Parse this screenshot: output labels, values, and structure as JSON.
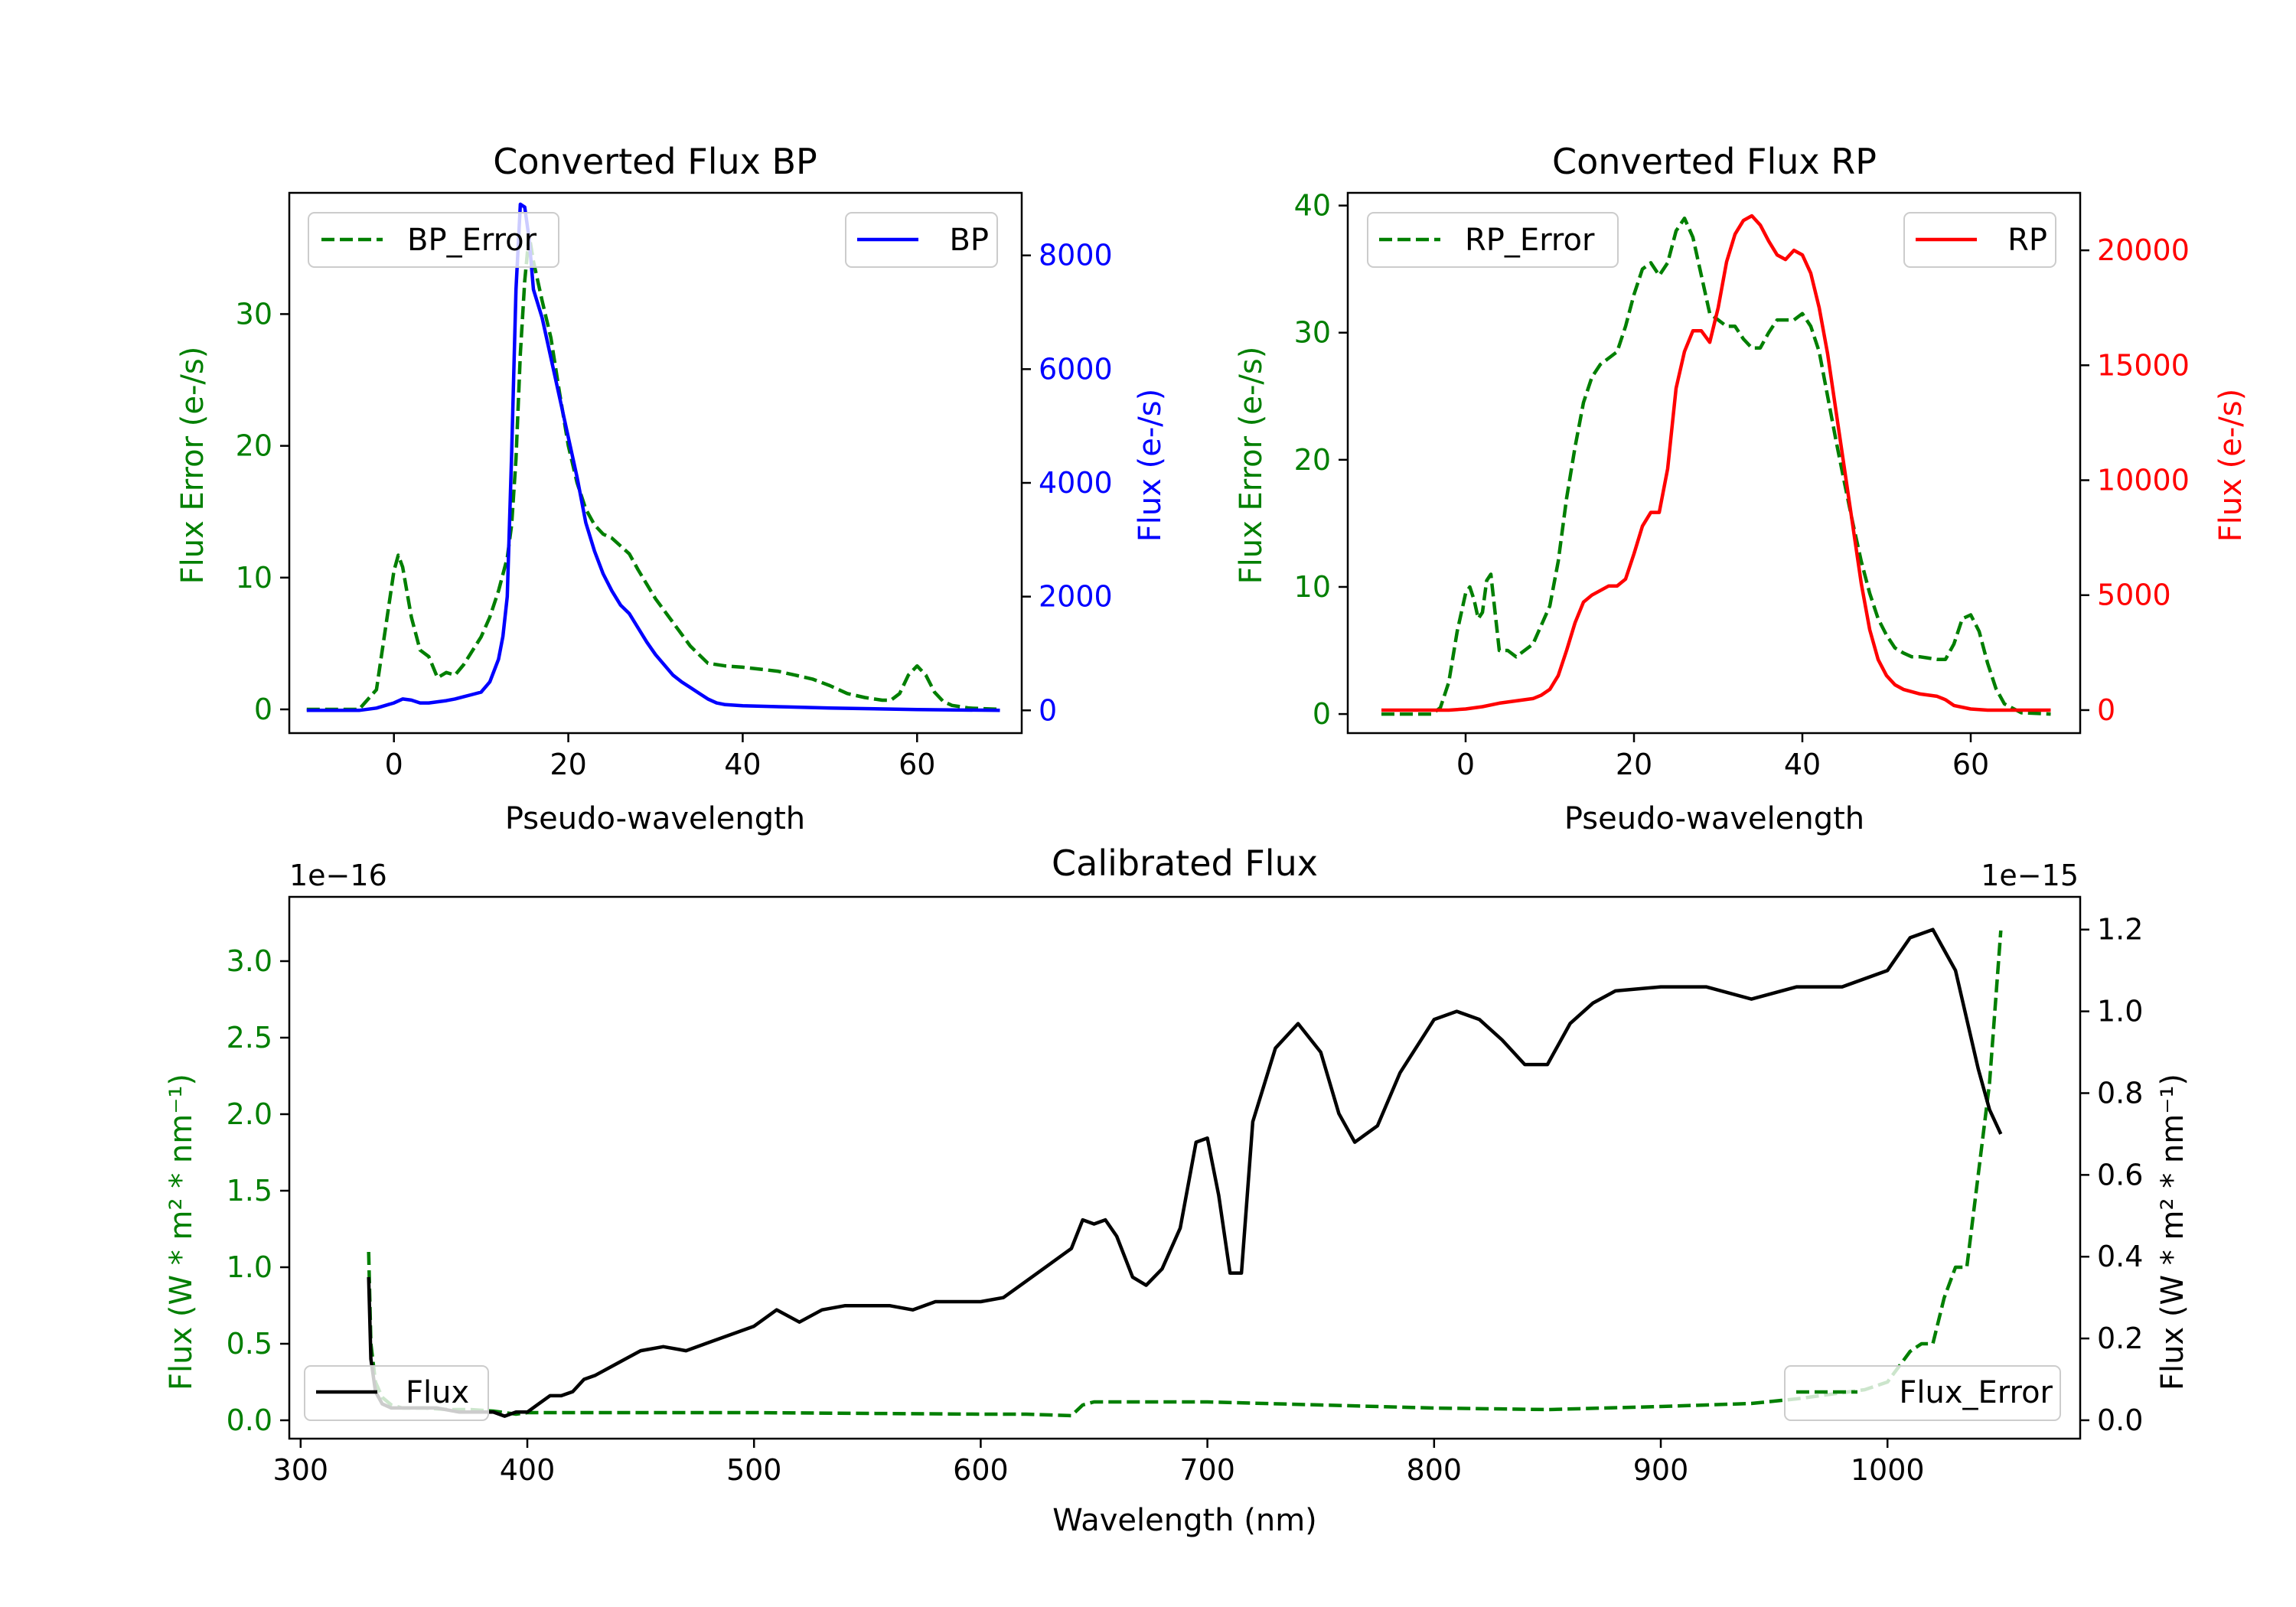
{
  "colors": {
    "error": "#007f00",
    "bp": "#0000ff",
    "rp": "#ff0000",
    "flux": "#000000"
  },
  "chart_data": [
    {
      "type": "line",
      "title": "Converted Flux BP",
      "xlabel": "Pseudo-wavelength",
      "ylabel_left": "Flux Error (e-/s)",
      "ylabel_right": "Flux (e-/s)",
      "xlim": [
        -12,
        72
      ],
      "ylim_left": [
        -1.8,
        39.2
      ],
      "ylim_right": [
        -400,
        9100
      ],
      "xticks": [
        0,
        20,
        40,
        60
      ],
      "yticks_left": [
        0,
        10,
        20,
        30
      ],
      "yticks_right": [
        0,
        2000,
        4000,
        6000,
        8000
      ],
      "legend_left": {
        "label": "BP_Error",
        "position": "upper left"
      },
      "legend_right": {
        "label": "BP",
        "position": "upper right"
      },
      "series": [
        {
          "name": "BP_Error",
          "axis": "left",
          "style": "dashed",
          "color": "#007f00",
          "x": [
            -10,
            -4,
            -2,
            -1,
            0,
            0.5,
            1,
            2,
            3,
            4,
            5,
            6,
            7,
            8,
            10,
            11,
            12,
            13,
            13.5,
            14,
            14.5,
            15,
            15.5,
            16,
            17,
            18,
            19,
            20,
            21,
            22,
            23,
            24,
            25,
            26,
            27,
            28,
            30,
            32,
            34,
            36,
            38,
            40,
            44,
            46,
            48,
            50,
            52,
            54,
            56,
            57,
            58,
            59,
            60,
            61,
            62,
            63,
            64,
            66,
            69.5
          ],
          "y": [
            0,
            0,
            1.5,
            6,
            10.5,
            11.7,
            10.8,
            7,
            4.5,
            4,
            2.4,
            2.8,
            2.6,
            3.4,
            5.5,
            7,
            9,
            11.5,
            14,
            19,
            27,
            32.5,
            36,
            34,
            31,
            28.2,
            24,
            20,
            17.2,
            15.2,
            14,
            13.3,
            13,
            12.4,
            11.8,
            10.6,
            8.4,
            6.6,
            4.8,
            3.5,
            3.3,
            3.2,
            2.9,
            2.6,
            2.3,
            1.8,
            1.2,
            0.9,
            0.7,
            0.7,
            1.2,
            2.6,
            3.3,
            2.6,
            1.3,
            0.6,
            0.3,
            0.1,
            0
          ]
        },
        {
          "name": "BP",
          "axis": "right",
          "style": "solid",
          "color": "#0000ff",
          "x": [
            -10,
            -4,
            -2,
            0,
            1,
            2,
            3,
            4,
            5,
            6,
            7,
            8,
            9,
            10,
            11,
            12,
            12.5,
            13,
            13.5,
            14,
            14.5,
            15,
            15.5,
            16,
            17,
            18,
            19,
            20,
            21,
            22,
            23,
            24,
            25,
            26,
            27,
            28,
            29,
            30,
            31,
            32,
            33,
            34,
            35,
            36,
            37,
            38,
            40,
            45,
            50,
            60,
            69.5
          ],
          "y": [
            0,
            0,
            40,
            130,
            200,
            180,
            130,
            130,
            150,
            170,
            200,
            240,
            280,
            320,
            500,
            900,
            1300,
            2000,
            4500,
            7400,
            8900,
            8850,
            8300,
            7400,
            6900,
            6200,
            5500,
            4800,
            4100,
            3300,
            2800,
            2400,
            2100,
            1850,
            1700,
            1450,
            1200,
            980,
            800,
            620,
            500,
            400,
            300,
            200,
            130,
            100,
            80,
            60,
            40,
            15,
            0
          ]
        }
      ]
    },
    {
      "type": "line",
      "title": "Converted Flux RP",
      "xlabel": "Pseudo-wavelength",
      "ylabel_left": "Flux Error (e-/s)",
      "ylabel_right": "Flux (e-/s)",
      "xlim": [
        -14,
        73
      ],
      "ylim_left": [
        -1.5,
        41
      ],
      "ylim_right": [
        -1000,
        22500
      ],
      "xticks": [
        0,
        20,
        40,
        60
      ],
      "yticks_left": [
        0,
        10,
        20,
        30,
        40
      ],
      "yticks_right": [
        0,
        5000,
        10000,
        15000,
        20000
      ],
      "legend_left": {
        "label": "RP_Error",
        "position": "upper left"
      },
      "legend_right": {
        "label": "RP",
        "position": "upper right"
      },
      "series": [
        {
          "name": "RP_Error",
          "axis": "left",
          "style": "dashed",
          "color": "#007f00",
          "x": [
            -10,
            -4,
            -3,
            -2,
            -1,
            0,
            0.5,
            1,
            1.5,
            2,
            2.5,
            3,
            3.5,
            4,
            5,
            6,
            8,
            10,
            11,
            12,
            13,
            14,
            15,
            16,
            17,
            18,
            19,
            20,
            21,
            22,
            23,
            24,
            25,
            26,
            27,
            28,
            29,
            30,
            31,
            32,
            33,
            34,
            35,
            36,
            37,
            38,
            39,
            40,
            41,
            42,
            43,
            44,
            45,
            46,
            47,
            48,
            49,
            50,
            51,
            52,
            53,
            54,
            55,
            56,
            57,
            58,
            59,
            60,
            61,
            62,
            63,
            64,
            66,
            69.5
          ],
          "y": [
            0,
            0,
            0.5,
            2.5,
            6.5,
            9.5,
            10,
            9,
            7.5,
            8,
            10.5,
            11,
            8,
            5,
            5,
            4.5,
            5.5,
            8.5,
            12,
            17,
            21,
            24.5,
            26.5,
            27.5,
            28,
            28.5,
            30.5,
            33,
            35,
            35.5,
            34.5,
            35.5,
            38,
            39,
            37.5,
            34.5,
            31.5,
            31,
            30.5,
            30.5,
            29.5,
            28.8,
            28.8,
            30,
            31,
            31,
            31,
            31.5,
            30.5,
            28.5,
            25,
            21.5,
            18.2,
            15,
            12,
            9.5,
            7.5,
            6.2,
            5.2,
            4.8,
            4.5,
            4.5,
            4.4,
            4.3,
            4.3,
            5.5,
            7.5,
            7.8,
            6.5,
            4,
            2,
            0.8,
            0.1,
            0
          ]
        },
        {
          "name": "RP",
          "axis": "right",
          "style": "solid",
          "color": "#ff0000",
          "x": [
            -10,
            -2,
            0,
            2,
            4,
            6,
            8,
            9,
            10,
            11,
            12,
            13,
            14,
            15,
            16,
            17,
            18,
            19,
            20,
            21,
            22,
            23,
            24,
            25,
            26,
            27,
            28,
            29,
            30,
            31,
            32,
            33,
            34,
            35,
            36,
            37,
            38,
            39,
            40,
            41,
            42,
            43,
            44,
            45,
            46,
            47,
            48,
            49,
            50,
            51,
            52,
            53,
            54,
            55,
            56,
            57,
            58,
            60,
            62,
            64,
            69.5
          ],
          "y": [
            0,
            0,
            50,
            150,
            300,
            400,
            500,
            650,
            900,
            1500,
            2600,
            3800,
            4700,
            5000,
            5200,
            5400,
            5400,
            5700,
            6800,
            8000,
            8600,
            8600,
            10500,
            14000,
            15600,
            16500,
            16500,
            16000,
            17500,
            19500,
            20700,
            21300,
            21500,
            21100,
            20400,
            19800,
            19600,
            20000,
            19800,
            19000,
            17500,
            15500,
            13000,
            10500,
            8000,
            5500,
            3500,
            2200,
            1500,
            1100,
            900,
            800,
            700,
            650,
            600,
            450,
            200,
            50,
            0,
            0,
            0
          ]
        }
      ]
    },
    {
      "type": "line",
      "title": "Calibrated Flux",
      "xlabel": "Wavelength (nm)",
      "ylabel_left": "Flux (W * m² * nm⁻¹)",
      "ylabel_right": "Flux (W * m² * nm⁻¹)",
      "offset_left": "1e−16",
      "offset_right": "1e−15",
      "xlim": [
        295,
        1085
      ],
      "ylim_left": [
        -0.12,
        3.42
      ],
      "ylim_right": [
        -0.045,
        1.28
      ],
      "xticks": [
        300,
        400,
        500,
        600,
        700,
        800,
        900,
        1000
      ],
      "yticks_left": [
        0.0,
        0.5,
        1.0,
        1.5,
        2.0,
        2.5,
        3.0
      ],
      "yticks_right": [
        0.0,
        0.2,
        0.4,
        0.6,
        0.8,
        1.0,
        1.2
      ],
      "legend_left": {
        "label": "Flux",
        "position": "lower left"
      },
      "legend_right": {
        "label": "Flux_Error",
        "position": "lower right"
      },
      "series": [
        {
          "name": "Flux_Error",
          "axis": "left",
          "style": "dashed",
          "color": "#007f00",
          "x": [
            330,
            331,
            333,
            336,
            340,
            345,
            355,
            365,
            375,
            385,
            390,
            395,
            400,
            420,
            500,
            600,
            620,
            640,
            645,
            650,
            700,
            750,
            800,
            850,
            900,
            940,
            960,
            980,
            990,
            1000,
            1005,
            1010,
            1015,
            1020,
            1025,
            1030,
            1035,
            1040,
            1045,
            1048,
            1050
          ],
          "y": [
            1.1,
            0.5,
            0.25,
            0.15,
            0.1,
            0.08,
            0.08,
            0.07,
            0.07,
            0.06,
            0.05,
            0.04,
            0.05,
            0.05,
            0.05,
            0.04,
            0.04,
            0.03,
            0.1,
            0.12,
            0.12,
            0.1,
            0.08,
            0.07,
            0.09,
            0.11,
            0.14,
            0.18,
            0.2,
            0.25,
            0.35,
            0.45,
            0.5,
            0.5,
            0.8,
            1.0,
            1.0,
            1.6,
            2.2,
            2.8,
            3.2
          ]
        },
        {
          "name": "Flux",
          "axis": "right",
          "style": "solid",
          "color": "#000000",
          "x": [
            330,
            331,
            333,
            336,
            340,
            350,
            360,
            370,
            380,
            385,
            390,
            395,
            400,
            405,
            410,
            415,
            420,
            425,
            430,
            440,
            450,
            460,
            470,
            480,
            490,
            500,
            510,
            520,
            530,
            540,
            560,
            570,
            580,
            590,
            600,
            610,
            620,
            630,
            640,
            645,
            650,
            655,
            660,
            667,
            673,
            680,
            688,
            695,
            700,
            705,
            710,
            715,
            720,
            730,
            740,
            750,
            758,
            765,
            775,
            785,
            800,
            810,
            820,
            830,
            840,
            850,
            860,
            870,
            880,
            900,
            920,
            940,
            960,
            980,
            1000,
            1010,
            1020,
            1025,
            1030,
            1035,
            1040,
            1045,
            1050
          ],
          "y": [
            0.35,
            0.15,
            0.07,
            0.04,
            0.03,
            0.03,
            0.03,
            0.02,
            0.02,
            0.02,
            0.01,
            0.02,
            0.02,
            0.04,
            0.06,
            0.06,
            0.07,
            0.1,
            0.11,
            0.14,
            0.17,
            0.18,
            0.17,
            0.19,
            0.21,
            0.23,
            0.27,
            0.24,
            0.27,
            0.28,
            0.28,
            0.27,
            0.29,
            0.29,
            0.29,
            0.3,
            0.34,
            0.38,
            0.42,
            0.49,
            0.48,
            0.49,
            0.45,
            0.35,
            0.33,
            0.37,
            0.47,
            0.68,
            0.69,
            0.55,
            0.36,
            0.36,
            0.73,
            0.91,
            0.97,
            0.9,
            0.75,
            0.68,
            0.72,
            0.85,
            0.98,
            1.0,
            0.98,
            0.93,
            0.87,
            0.87,
            0.97,
            1.02,
            1.05,
            1.06,
            1.06,
            1.03,
            1.06,
            1.06,
            1.1,
            1.18,
            1.2,
            1.15,
            1.1,
            0.98,
            0.86,
            0.76,
            0.7
          ]
        }
      ]
    }
  ]
}
